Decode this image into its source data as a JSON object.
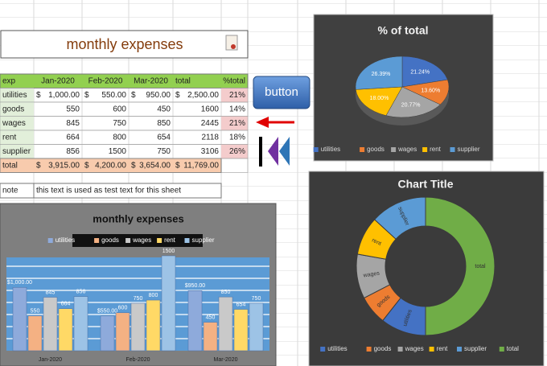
{
  "sheet": {
    "title": "monthly expenses",
    "button": "button",
    "table": {
      "header": [
        "exp",
        "Jan-2020",
        "Feb-2020",
        "Mar-2020",
        "total",
        "%total"
      ],
      "rows": [
        [
          "utilities",
          [
            "$",
            "1,000.00"
          ],
          [
            "$",
            "550.00"
          ],
          [
            "$",
            "950.00"
          ],
          [
            "$",
            "2,500.00"
          ],
          "21%"
        ],
        [
          "goods",
          "550",
          "600",
          "450",
          "1600",
          "14%"
        ],
        [
          "wages",
          "845",
          "750",
          "850",
          "2445",
          "21%"
        ],
        [
          "rent",
          "664",
          "800",
          "654",
          "2118",
          "18%"
        ],
        [
          "supplier",
          "856",
          "1500",
          "750",
          "3106",
          "26%"
        ],
        [
          "total",
          [
            "$",
            "3,915.00"
          ],
          [
            "$",
            "4,200.00"
          ],
          [
            "$",
            "3,654.00"
          ],
          [
            "$",
            "11,769.00"
          ]
        ]
      ]
    },
    "note": [
      "note",
      "this text is used as test text for this sheet"
    ]
  },
  "chart_data": [
    {
      "type": "pie",
      "title": "% of total",
      "categories": [
        "utilities",
        "goods",
        "wages",
        "rent",
        "supplier"
      ],
      "values": [
        21.24,
        13.6,
        20.77,
        18.0,
        26.39
      ],
      "value_labels": [
        "21.24%",
        "13.60%",
        "20.77%",
        "18.00%",
        "26.39%"
      ],
      "colors": [
        "#4472c4",
        "#ed7d31",
        "#a5a5a5",
        "#ffc000",
        "#5b9bd5"
      ],
      "legend": "bottom"
    },
    {
      "type": "bar",
      "title": "monthly expenses",
      "categories": [
        "Jan-2020",
        "Feb-2020",
        "Mar-2020"
      ],
      "series": [
        {
          "name": "utilities",
          "color": "#8eaadb",
          "values": [
            1000,
            550,
            950
          ],
          "value_labels": [
            "$1,000.00",
            "$550.00",
            "$950.00"
          ]
        },
        {
          "name": "goods",
          "color": "#f4b183",
          "values": [
            550,
            600,
            450
          ]
        },
        {
          "name": "wages",
          "color": "#c9c9c9",
          "values": [
            845,
            750,
            850
          ]
        },
        {
          "name": "rent",
          "color": "#ffd966",
          "values": [
            664,
            800,
            654
          ]
        },
        {
          "name": "supplier",
          "color": "#9dc3e6",
          "values": [
            856,
            1500,
            750
          ]
        }
      ],
      "grid": true,
      "legend": "top"
    },
    {
      "type": "donut",
      "title": "Chart Title",
      "categories": [
        "utilities",
        "goods",
        "wages",
        "rent",
        "supplier",
        "total"
      ],
      "values": [
        2500,
        1600,
        2445,
        2118,
        3106,
        11769
      ],
      "colors": [
        "#4472c4",
        "#ed7d31",
        "#a5a5a5",
        "#ffc000",
        "#5b9bd5",
        "#70ad47"
      ],
      "legend": "bottom"
    }
  ]
}
